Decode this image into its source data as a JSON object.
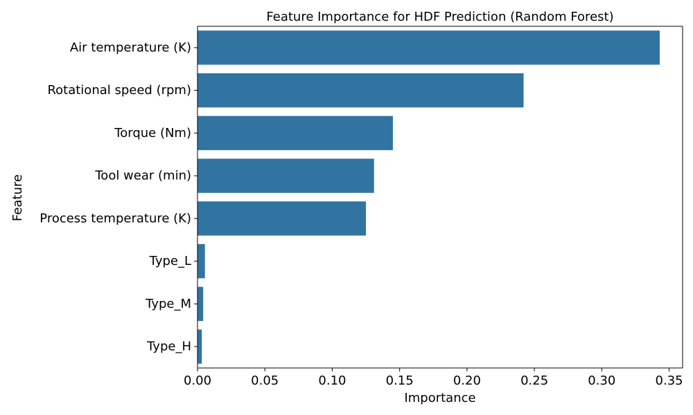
{
  "chart_data": {
    "type": "bar",
    "orientation": "horizontal",
    "title": "Feature Importance for HDF Prediction (Random Forest)",
    "xlabel": "Importance",
    "ylabel": "Feature",
    "categories": [
      "Air temperature (K)",
      "Rotational speed (rpm)",
      "Torque (Nm)",
      "Tool wear (min)",
      "Process temperature (K)",
      "Type_L",
      "Type_M",
      "Type_H"
    ],
    "values": [
      0.343,
      0.242,
      0.145,
      0.131,
      0.125,
      0.0055,
      0.0042,
      0.0032
    ],
    "xlim": [
      0,
      0.36
    ],
    "xticks": [
      0.0,
      0.05,
      0.1,
      0.15,
      0.2,
      0.25,
      0.3,
      0.35
    ],
    "xtick_labels": [
      "0.00",
      "0.05",
      "0.10",
      "0.15",
      "0.20",
      "0.25",
      "0.30",
      "0.35"
    ],
    "grid": false,
    "bar_color": "#3274a1"
  }
}
